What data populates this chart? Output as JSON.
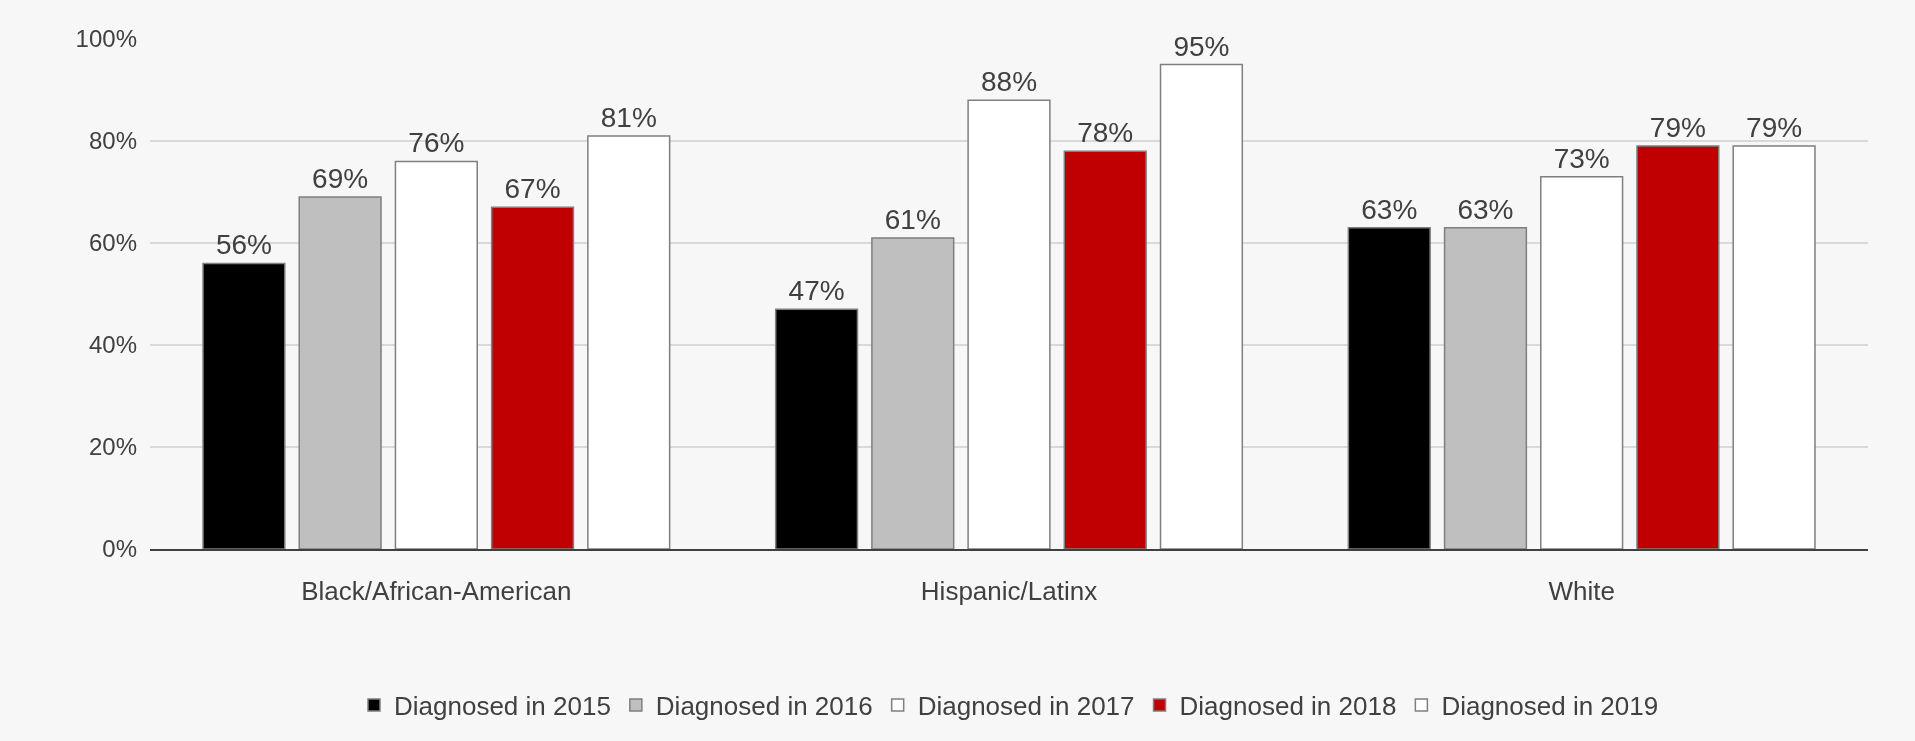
{
  "chart_data": {
    "type": "bar",
    "categories": [
      "Black/African-American",
      "Hispanic/Latinx",
      "White"
    ],
    "series": [
      {
        "name": "Diagnosed in 2015",
        "color": "#000000",
        "values": [
          56,
          47,
          63
        ],
        "value_labels": [
          "56%",
          "47%",
          "63%"
        ]
      },
      {
        "name": "Diagnosed in 2016",
        "color": "#bfbfbf",
        "values": [
          69,
          61,
          63
        ],
        "value_labels": [
          "69%",
          "61%",
          "63%"
        ]
      },
      {
        "name": "Diagnosed in 2017",
        "color": "#ffffff",
        "values": [
          76,
          88,
          73
        ],
        "value_labels": [
          "76%",
          "88%",
          "73%"
        ]
      },
      {
        "name": "Diagnosed in 2018",
        "color": "#c00000",
        "values": [
          67,
          78,
          79
        ],
        "value_labels": [
          "67%",
          "78%",
          "79%"
        ]
      },
      {
        "name": "Diagnosed in 2019",
        "color": "#ffffff",
        "values": [
          81,
          95,
          79
        ],
        "value_labels": [
          "81%",
          "95%",
          "79%"
        ]
      }
    ],
    "ylim": [
      0,
      100
    ],
    "yticks": [
      {
        "value": 0,
        "label": "0%"
      },
      {
        "value": 20,
        "label": "20%"
      },
      {
        "value": 40,
        "label": "40%"
      },
      {
        "value": 60,
        "label": "60%"
      },
      {
        "value": 80,
        "label": "80%"
      },
      {
        "value": 100,
        "label": "100%"
      }
    ],
    "grid": "y",
    "legend": "bottom"
  }
}
